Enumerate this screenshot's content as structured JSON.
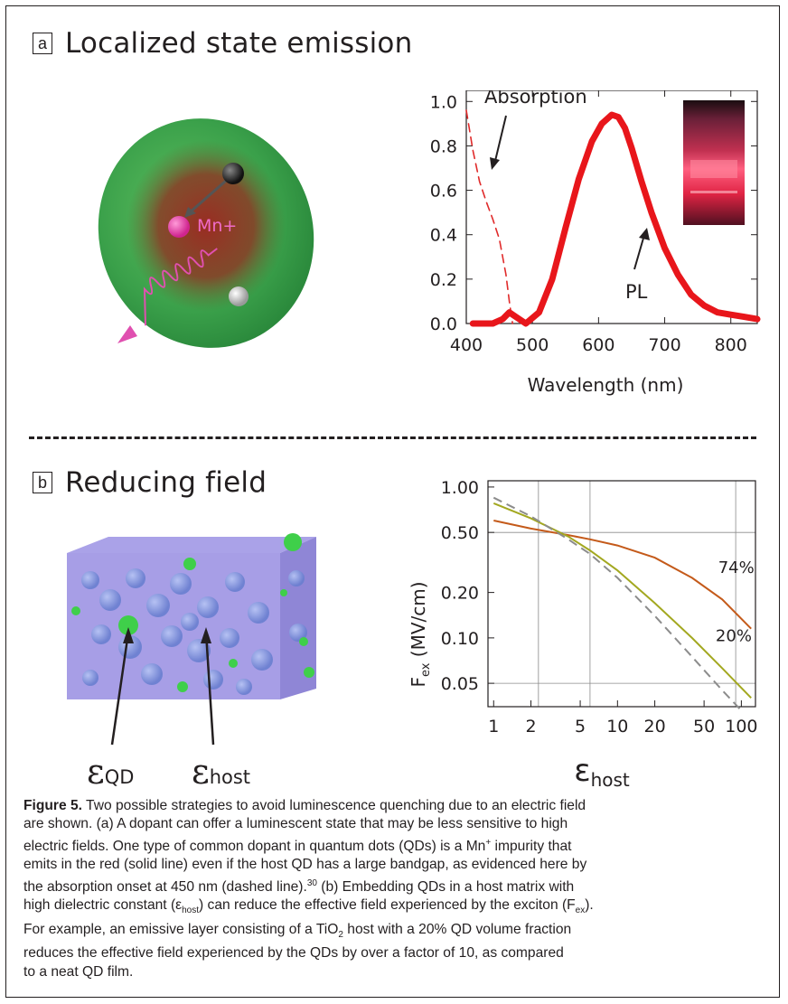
{
  "panel_a": {
    "letter": "a",
    "title": "Localized state emission",
    "illustration": {
      "ion_label": "Mn+"
    }
  },
  "panel_b": {
    "letter": "b",
    "title": "Reducing field",
    "illustration": {
      "eps_symbol": "ε",
      "qd_sub": "QD",
      "host_sub": "host"
    }
  },
  "chart_data": [
    {
      "type": "line",
      "xlabel": "Wavelength (nm)",
      "ylabel": "",
      "xlim": [
        400,
        840
      ],
      "ylim": [
        0,
        1.05
      ],
      "x_ticks": [
        "400",
        "500",
        "600",
        "700",
        "800"
      ],
      "y_ticks": [
        "0.0",
        "0.2",
        "0.4",
        "0.6",
        "0.8",
        "1.0"
      ],
      "annotations": [
        "Absorption",
        "PL"
      ],
      "series": [
        {
          "name": "Absorption",
          "style": "dashed",
          "color": "#e02a2a",
          "x": [
            400,
            410,
            420,
            430,
            440,
            450,
            460,
            465,
            470
          ],
          "y": [
            0.96,
            0.78,
            0.64,
            0.55,
            0.47,
            0.38,
            0.22,
            0.1,
            0.0
          ]
        },
        {
          "name": "PL",
          "style": "solid",
          "color": "#e8161b",
          "x": [
            410,
            440,
            455,
            465,
            475,
            490,
            510,
            530,
            550,
            570,
            590,
            605,
            620,
            630,
            640,
            650,
            665,
            680,
            700,
            720,
            740,
            760,
            780,
            800,
            820,
            840
          ],
          "y": [
            0.0,
            0.0,
            0.02,
            0.05,
            0.03,
            0.0,
            0.05,
            0.2,
            0.43,
            0.65,
            0.82,
            0.9,
            0.94,
            0.93,
            0.88,
            0.79,
            0.64,
            0.5,
            0.34,
            0.22,
            0.13,
            0.08,
            0.05,
            0.04,
            0.03,
            0.02
          ]
        }
      ]
    },
    {
      "type": "line",
      "xlabel": "εhost",
      "ylabel": "Fex (MV/cm)",
      "x_scale": "log",
      "y_scale": "log",
      "xlim": [
        0.9,
        130
      ],
      "ylim": [
        0.035,
        1.1
      ],
      "x_ticks": [
        "1",
        "2",
        "5",
        "10",
        "20",
        "50",
        "100"
      ],
      "y_ticks": [
        "1.00",
        "0.50",
        "0.20",
        "0.10",
        "0.05"
      ],
      "gridlines_x": [
        2.3,
        6,
        90
      ],
      "gridlines_y": [
        0.5,
        0.05
      ],
      "annotations": [
        "74%",
        "20%"
      ],
      "series": [
        {
          "name": "74%",
          "color": "#c45a1a",
          "x": [
            1,
            2,
            4,
            6,
            10,
            20,
            40,
            70,
            120
          ],
          "y": [
            0.6,
            0.53,
            0.48,
            0.45,
            0.41,
            0.34,
            0.25,
            0.18,
            0.115
          ]
        },
        {
          "name": "20%",
          "color": "#a3a820",
          "x": [
            1,
            2,
            4,
            6,
            10,
            20,
            40,
            70,
            120
          ],
          "y": [
            0.78,
            0.62,
            0.47,
            0.38,
            0.28,
            0.17,
            0.1,
            0.063,
            0.04
          ]
        },
        {
          "name": "neat QD film",
          "style": "dashed",
          "color": "#8c8c8c",
          "x": [
            1,
            2,
            4,
            6,
            10,
            20,
            40,
            70,
            100
          ],
          "y": [
            0.85,
            0.64,
            0.45,
            0.36,
            0.25,
            0.14,
            0.075,
            0.045,
            0.033
          ]
        }
      ]
    }
  ],
  "caption": {
    "label": "Figure 5.",
    "line1": " Two possible strategies to avoid luminescence quenching due to an electric field",
    "line2": "are shown. (a) A dopant can offer a luminescent state that may be less sensitive to high",
    "line3": "electric fields. One type of common dopant in quantum dots (QDs) is a Mn",
    "line3_sup": "+",
    "line3_tail": " impurity that",
    "line4": "emits in the red (solid line) even if the host QD has a large bandgap, as evidenced here by",
    "line5": "the absorption onset at 450 nm (dashed line).",
    "line5_ref": "30",
    "line5_tail": " (b) Embedding QDs in a host matrix with",
    "line6a": "high dielectric constant (ε",
    "line6_sub": "host",
    "line6b": ") can reduce the effective field experienced by the exciton (F",
    "line6_sub2": "ex",
    "line6c": ").",
    "line7a": "For example, an emissive layer consisting of a TiO",
    "line7_sub": "2",
    "line7b": " host with a 20% QD volume fraction",
    "line8": "reduces the effective field experienced by the QDs by over a factor of 10, as compared",
    "line9": "to a neat QD film."
  },
  "colors": {
    "pl_red": "#e8161b",
    "sphere_green": "#3aa04a",
    "box_purple": "#9b90e0"
  }
}
